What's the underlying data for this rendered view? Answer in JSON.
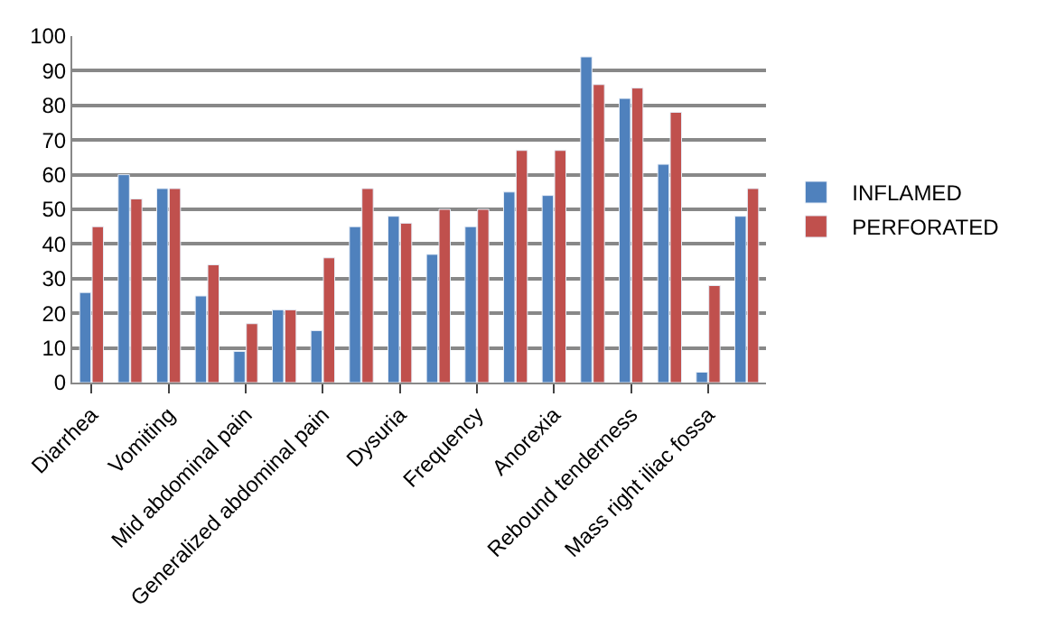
{
  "chart_data": {
    "type": "bar",
    "categories": [
      "Diarrhea",
      null,
      "Vomiting",
      null,
      "Mid abdominal pain",
      null,
      "Generalized abdominal pain",
      null,
      "Dysuria",
      null,
      "Frequency",
      null,
      "Anorexia",
      null,
      "Rebound tenderness",
      null,
      "Mass right iliac fossa",
      null
    ],
    "series": [
      {
        "name": "INFLAMED",
        "color": "#4f81bd",
        "values": [
          26,
          60,
          56,
          25,
          9,
          21,
          15,
          45,
          48,
          37,
          45,
          55,
          54,
          94,
          82,
          63,
          3,
          48
        ]
      },
      {
        "name": "PERFORATED",
        "color": "#c0504d",
        "values": [
          45,
          53,
          56,
          34,
          17,
          21,
          36,
          56,
          46,
          50,
          50,
          67,
          67,
          86,
          85,
          78,
          28,
          56
        ]
      }
    ],
    "ylim": [
      0,
      100
    ],
    "yticks": [
      0,
      10,
      20,
      30,
      40,
      50,
      60,
      70,
      80,
      90,
      100
    ],
    "grid": "y",
    "legend": "right"
  }
}
